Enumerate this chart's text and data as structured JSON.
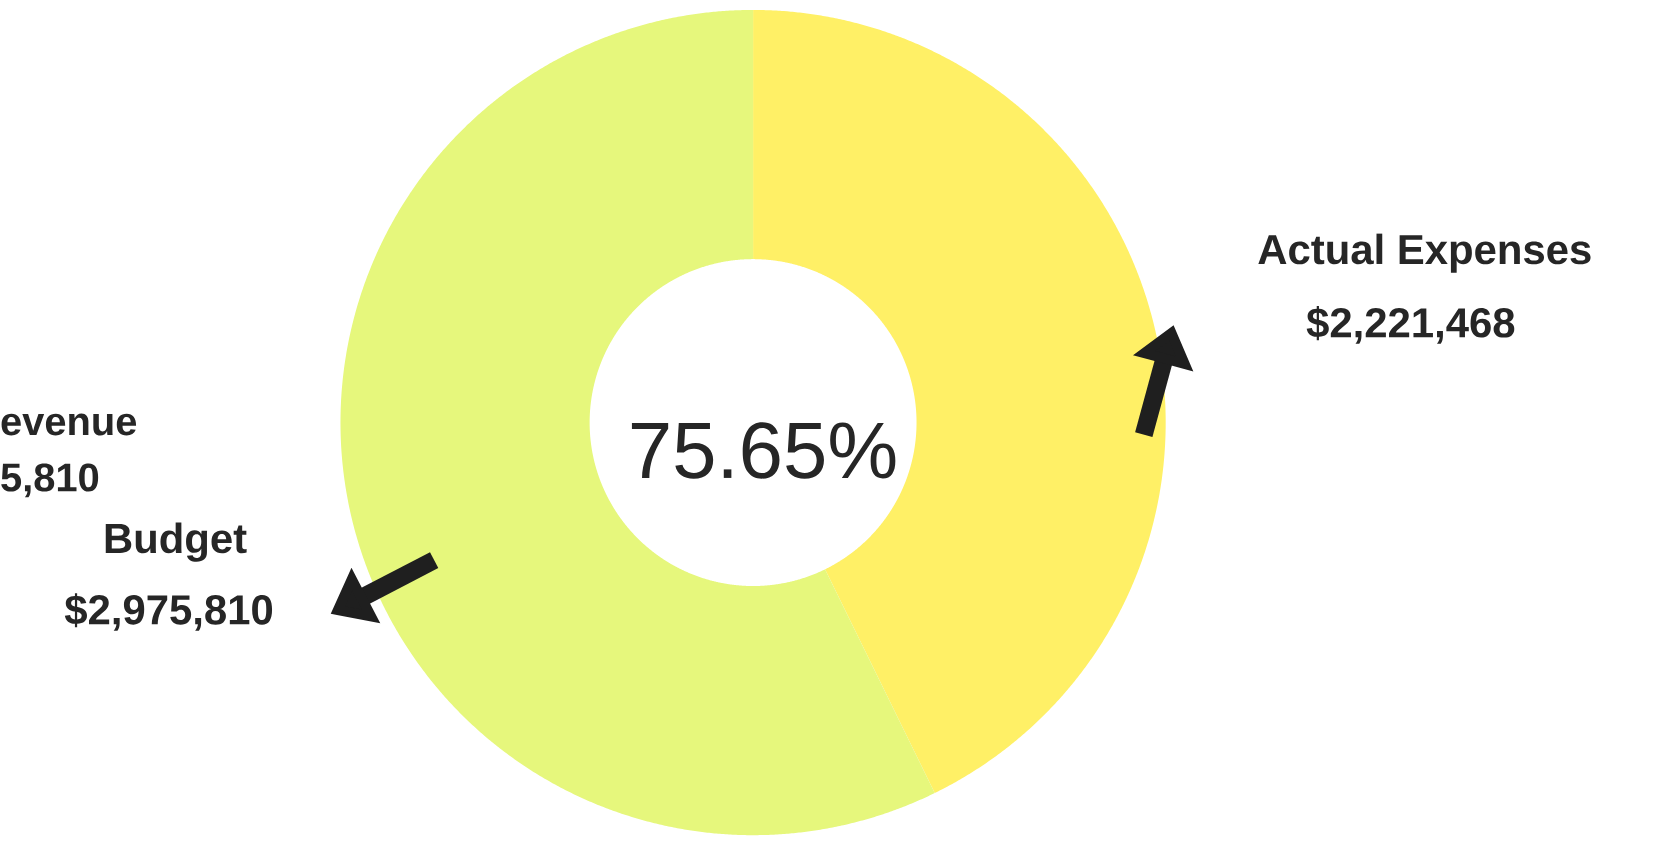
{
  "chart_data": {
    "type": "donut",
    "categories": [
      "Actual Expenses",
      "Budget"
    ],
    "values": [
      2221468,
      2975810
    ],
    "colors": [
      "#fff066",
      "#e6f77c"
    ],
    "value_labels": [
      "$2,221,468",
      "$2,975,810"
    ],
    "annotations": [
      "75.65%",
      "evenue",
      "5,810"
    ]
  }
}
